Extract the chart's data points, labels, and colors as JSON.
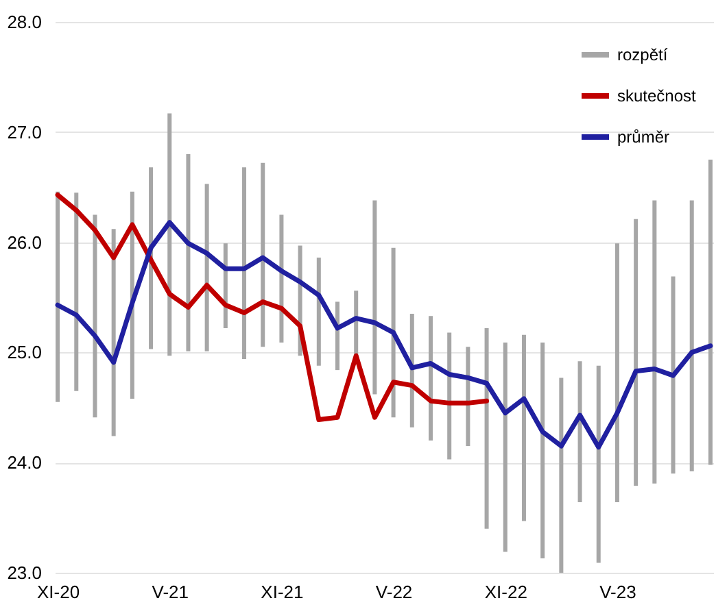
{
  "chart_data": {
    "type": "line",
    "categories": [
      "XI-20",
      null,
      null,
      null,
      null,
      null,
      "V-21",
      null,
      null,
      null,
      null,
      null,
      "XI-21",
      null,
      null,
      null,
      null,
      null,
      "V-22",
      null,
      null,
      null,
      null,
      null,
      "XI-22",
      null,
      null,
      null,
      null,
      null,
      "V-23",
      null,
      null,
      null,
      null,
      null
    ],
    "series": [
      {
        "name": "rozpětí",
        "type": "bar",
        "color": "#a6a6a6",
        "base": [
          24.55,
          24.65,
          24.41,
          24.24,
          24.58,
          25.03,
          24.97,
          25.01,
          25.01,
          25.22,
          24.94,
          25.05,
          25.09,
          24.97,
          24.88,
          24.84,
          24.92,
          24.62,
          24.41,
          24.32,
          24.2,
          24.03,
          24.15,
          23.4,
          23.19,
          23.47,
          23.13,
          23.0,
          23.64,
          23.09,
          23.64,
          23.79,
          23.81,
          23.9,
          23.92,
          23.98
        ],
        "values": [
          1.91,
          1.8,
          1.84,
          1.88,
          1.88,
          1.65,
          2.2,
          1.79,
          1.52,
          0.77,
          1.74,
          1.67,
          1.16,
          1.0,
          0.98,
          0.62,
          0.64,
          1.76,
          1.54,
          1.03,
          1.13,
          1.15,
          0.9,
          1.82,
          1.9,
          1.69,
          1.96,
          1.77,
          1.28,
          1.79,
          2.35,
          2.42,
          2.57,
          1.79,
          2.46,
          2.77
        ]
      },
      {
        "name": "skutečnost",
        "color": "#c00000",
        "values": [
          26.43,
          26.29,
          26.11,
          25.86,
          26.16,
          25.84,
          25.53,
          25.41,
          25.61,
          25.43,
          25.36,
          25.46,
          25.4,
          25.24,
          24.39,
          24.41,
          24.97,
          24.41,
          24.73,
          24.7,
          24.56,
          24.54,
          24.54,
          24.56,
          null,
          null,
          null,
          null,
          null,
          null,
          null,
          null,
          null,
          null,
          null,
          null
        ]
      },
      {
        "name": "průměr",
        "color": "#2020a0",
        "values": [
          25.43,
          25.34,
          25.15,
          24.91,
          25.45,
          25.95,
          26.18,
          25.99,
          25.9,
          25.76,
          25.76,
          25.86,
          25.74,
          25.64,
          25.52,
          25.22,
          25.31,
          25.27,
          25.18,
          24.86,
          24.9,
          24.8,
          24.77,
          24.72,
          24.45,
          24.58,
          24.28,
          24.15,
          24.43,
          24.14,
          24.45,
          24.83,
          24.85,
          24.79,
          25.0,
          25.06
        ]
      }
    ],
    "ylim": [
      23,
      28
    ],
    "yticks": [
      {
        "value": 23,
        "label": "23.0"
      },
      {
        "value": 24,
        "label": "24.0"
      },
      {
        "value": 25,
        "label": "25.0"
      },
      {
        "value": 26,
        "label": "26.0"
      },
      {
        "value": 27,
        "label": "27.0"
      },
      {
        "value": 28,
        "label": "28.0"
      }
    ],
    "grid": "y",
    "legend": "top right",
    "line_style": "solid",
    "marker": "none"
  }
}
